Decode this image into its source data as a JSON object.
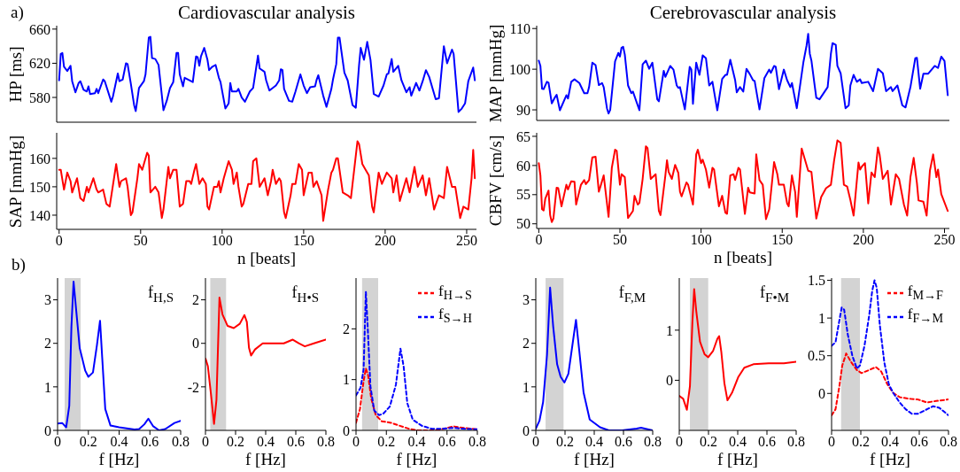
{
  "chart_data": [
    {
      "type": "line",
      "title": "Cardiovascular analysis",
      "ylabel": "HP [ms]",
      "annotations": [
        "a)"
      ],
      "xlim": [
        -1.5,
        256
      ],
      "ylim": [
        551,
        664
      ],
      "xticks": [
        0,
        50,
        100,
        150,
        200,
        250
      ],
      "yticks": [
        580,
        620,
        660
      ],
      "tick_labels": "y",
      "series": [
        {
          "color": "#0000ff",
          "x": [
            0,
            1,
            2,
            3,
            5,
            7,
            8,
            10,
            12,
            13,
            15,
            17,
            18,
            19,
            22,
            23,
            24,
            27,
            28,
            32,
            33,
            36,
            37,
            39,
            41,
            42,
            44,
            46,
            47,
            49,
            52,
            53,
            55,
            56,
            57,
            59,
            61,
            64,
            66,
            68,
            70,
            72,
            73,
            74,
            76,
            77,
            82,
            84,
            85,
            86,
            87,
            89,
            91,
            92,
            94,
            96,
            98,
            99,
            102,
            104,
            105,
            106,
            109,
            110,
            112,
            114,
            117,
            119,
            122,
            123,
            126,
            127,
            129,
            133,
            135,
            136,
            137,
            138,
            141,
            143,
            145,
            148,
            150,
            152,
            154,
            157,
            158,
            159,
            162,
            164,
            167,
            168,
            170,
            171,
            172,
            175,
            177,
            180,
            182,
            184,
            185,
            187,
            189,
            191,
            193,
            196,
            199,
            201,
            202,
            204,
            205,
            208,
            210,
            213,
            215,
            216,
            219,
            221,
            223,
            225,
            227,
            231,
            233,
            236,
            238,
            241,
            242,
            245,
            247,
            249,
            251,
            254,
            255
          ],
          "values": [
            600,
            631,
            632,
            616,
            611,
            617,
            599,
            586,
            597,
            599,
            589,
            587,
            593,
            584,
            585,
            590,
            585,
            601,
            599,
            575,
            581,
            608,
            599,
            601,
            620,
            619,
            596,
            571,
            564,
            591,
            599,
            607,
            650,
            651,
            626,
            625,
            618,
            565,
            576,
            591,
            598,
            632,
            632,
            607,
            593,
            603,
            598,
            628,
            627,
            617,
            628,
            638,
            624,
            612,
            616,
            618,
            603,
            598,
            567,
            573,
            597,
            587,
            587,
            590,
            580,
            575,
            587,
            591,
            629,
            614,
            610,
            600,
            588,
            594,
            600,
            613,
            612,
            590,
            576,
            575,
            587,
            607,
            594,
            585,
            592,
            593,
            601,
            606,
            582,
            569,
            590,
            601,
            619,
            650,
            650,
            609,
            600,
            571,
            568,
            618,
            638,
            624,
            645,
            624,
            584,
            581,
            594,
            607,
            608,
            625,
            610,
            617,
            600,
            586,
            592,
            582,
            597,
            588,
            599,
            612,
            604,
            578,
            579,
            640,
            620,
            636,
            631,
            563,
            567,
            573,
            599,
            615,
            600
          ]
        }
      ]
    },
    {
      "type": "line",
      "title": "Cerebrovascular analysis",
      "ylabel": "MAP [mmHg]",
      "xlim": [
        -1.3,
        253
      ],
      "ylim": [
        87.4,
        110.7
      ],
      "xticks": [
        0,
        50,
        100,
        150,
        200,
        250
      ],
      "yticks": [
        90,
        100,
        110
      ],
      "tick_labels": "y",
      "series": [
        {
          "color": "#0000ff",
          "x": [
            0,
            1,
            2,
            3,
            5,
            6,
            8,
            10,
            11,
            13,
            17,
            18,
            20,
            22,
            25,
            28,
            30,
            31,
            33,
            35,
            37,
            39,
            40,
            42,
            43,
            44,
            47,
            49,
            50,
            51,
            52,
            53,
            55,
            57,
            58,
            62,
            64,
            66,
            68,
            70,
            73,
            74,
            77,
            78,
            81,
            83,
            85,
            86,
            87,
            90,
            93,
            94,
            95,
            97,
            99,
            101,
            103,
            105,
            107,
            110,
            113,
            115,
            116,
            118,
            121,
            122,
            124,
            126,
            128,
            130,
            132,
            133,
            136,
            139,
            142,
            143,
            145,
            146,
            148,
            151,
            153,
            155,
            156,
            159,
            163,
            165,
            166,
            167,
            168,
            170,
            171,
            173,
            178,
            180,
            181,
            183,
            184,
            186,
            189,
            191,
            192,
            194,
            196,
            198,
            199,
            203,
            206,
            209,
            212,
            214,
            217,
            218,
            221,
            224,
            226,
            229,
            232,
            233,
            235,
            237,
            240,
            244,
            246,
            248,
            250,
            252
          ],
          "values": [
            102.1,
            100.8,
            95.2,
            95.1,
            96.9,
            96.7,
            91.6,
            93.1,
            93.7,
            89.9,
            93.6,
            92.8,
            96.9,
            97.5,
            96.6,
            94.1,
            94.1,
            95.6,
            101.6,
            101.0,
            96.1,
            96.6,
            95.6,
            90.4,
            89.1,
            90.0,
            101.9,
            104.0,
            103.1,
            105.3,
            105.5,
            103.6,
            96.0,
            94.1,
            94.5,
            89.9,
            101.2,
            102.1,
            100.1,
            101.6,
            92.6,
            92.1,
            99.6,
            98.1,
            100.8,
            99.9,
            96.0,
            95.4,
            95.6,
            90.1,
            100.6,
            99.9,
            91.5,
            101.6,
            98.6,
            103.4,
            102.7,
            96.0,
            96.9,
            89.9,
            97.6,
            98.6,
            98.6,
            102.3,
            97.3,
            94.3,
            95.6,
            94.5,
            100.1,
            98.8,
            97.3,
            97.1,
            90.1,
            97.8,
            99.9,
            99.1,
            100.8,
            100.6,
            95.1,
            99.9,
            97.3,
            95.6,
            96.6,
            90.4,
            101.6,
            105.8,
            108.7,
            103.8,
            102.1,
            96.0,
            93.0,
            92.6,
            95.6,
            103.8,
            106.4,
            106.0,
            100.8,
            99.0,
            90.4,
            91.1,
            96.0,
            98.6,
            96.9,
            97.5,
            96.6,
            96.9,
            94.6,
            100.1,
            99.0,
            94.6,
            95.6,
            94.6,
            96.0,
            91.1,
            90.6,
            95.6,
            102.7,
            102.8,
            95.2,
            98.9,
            98.9,
            100.8,
            100.3,
            103.1,
            102.0,
            93.6
          ]
        }
      ]
    },
    {
      "type": "line",
      "xlabel": "n [beats]",
      "ylabel": "SAP [mmHg]",
      "xlim": [
        -1.5,
        256
      ],
      "ylim": [
        135,
        169
      ],
      "xticks": [
        0,
        50,
        100,
        150,
        200,
        250
      ],
      "yticks": [
        140,
        150,
        160
      ],
      "series": [
        {
          "color": "#ff0000",
          "x": [
            0,
            1,
            3,
            4,
            5,
            7,
            8,
            11,
            13,
            15,
            17,
            18,
            21,
            23,
            24,
            27,
            29,
            31,
            35,
            37,
            38,
            41,
            42,
            44,
            45,
            48,
            49,
            51,
            52,
            54,
            55,
            56,
            59,
            61,
            63,
            64,
            67,
            68,
            70,
            72,
            74,
            76,
            78,
            80,
            81,
            83,
            84,
            86,
            88,
            90,
            91,
            92,
            95,
            97,
            98,
            99,
            101,
            104,
            106,
            107,
            109,
            110,
            112,
            113,
            116,
            118,
            119,
            121,
            123,
            126,
            128,
            130,
            131,
            133,
            135,
            136,
            138,
            139,
            142,
            143,
            145,
            147,
            149,
            150,
            153,
            155,
            156,
            158,
            161,
            162,
            165,
            167,
            168,
            170,
            171,
            174,
            177,
            179,
            180,
            183,
            184,
            186,
            188,
            190,
            192,
            193,
            196,
            198,
            201,
            204,
            205,
            207,
            209,
            213,
            215,
            218,
            220,
            223,
            225,
            227,
            230,
            233,
            236,
            238,
            241,
            243,
            246,
            248,
            251,
            253,
            254,
            255
          ],
          "values": [
            156,
            156,
            149,
            152,
            155,
            152,
            148,
            153,
            146,
            145,
            150,
            148,
            153,
            149,
            148,
            149,
            144,
            143,
            158,
            150,
            152,
            153,
            150,
            140,
            141,
            153,
            158,
            156,
            158,
            162,
            161,
            148,
            150,
            148,
            139,
            142,
            157,
            153,
            156,
            156,
            143,
            144,
            152,
            152,
            151,
            156,
            158,
            151,
            153,
            151,
            143,
            142,
            150,
            150,
            152,
            148,
            153,
            159,
            156,
            151,
            155,
            150,
            143,
            144,
            151,
            151,
            159,
            160,
            150,
            153,
            147,
            152,
            156,
            151,
            153,
            152,
            141,
            139,
            147,
            151,
            151,
            158,
            156,
            147,
            155,
            155,
            150,
            152,
            147,
            138,
            149,
            155,
            156,
            160,
            160,
            148,
            147,
            146,
            151,
            166,
            165,
            158,
            156,
            154,
            143,
            141,
            155,
            151,
            155,
            153,
            148,
            154,
            145,
            153,
            148,
            157,
            150,
            154,
            147,
            153,
            142,
            147,
            146,
            157,
            150,
            150,
            139,
            143,
            142,
            153,
            163,
            153
          ]
        }
      ]
    },
    {
      "type": "line",
      "xlabel": "n [beats]",
      "ylabel": "CBFV [cm/s]",
      "xlim": [
        -1.3,
        253
      ],
      "ylim": [
        49.2,
        65.6
      ],
      "xticks": [
        0,
        50,
        100,
        150,
        200,
        250
      ],
      "yticks": [
        50,
        55,
        60,
        65
      ],
      "series": [
        {
          "color": "#ff0000",
          "x": [
            0,
            1,
            2,
            3,
            4,
            6,
            7,
            8,
            9,
            11,
            12,
            14,
            17,
            18,
            20,
            22,
            23,
            26,
            28,
            29,
            31,
            33,
            35,
            37,
            38,
            40,
            43,
            45,
            47,
            48,
            50,
            51,
            53,
            55,
            58,
            59,
            61,
            62,
            64,
            66,
            67,
            69,
            72,
            74,
            75,
            78,
            79,
            80,
            82,
            84,
            86,
            87,
            88,
            91,
            92,
            95,
            97,
            98,
            100,
            101,
            103,
            105,
            107,
            108,
            111,
            113,
            115,
            116,
            118,
            120,
            121,
            123,
            124,
            127,
            129,
            130,
            133,
            134,
            136,
            138,
            140,
            142,
            145,
            147,
            148,
            151,
            153,
            154,
            156,
            158,
            159,
            162,
            166,
            168,
            171,
            174,
            177,
            180,
            182,
            184,
            186,
            188,
            190,
            192,
            194,
            197,
            198,
            199,
            201,
            203,
            205,
            207,
            209,
            210,
            212,
            215,
            217,
            220,
            222,
            225,
            227,
            229,
            231,
            233,
            234,
            237,
            239,
            241,
            243,
            245,
            246,
            248,
            252
          ],
          "values": [
            60.4,
            58.3,
            52.5,
            52.3,
            54.3,
            55.7,
            51.5,
            50.3,
            50.9,
            56.2,
            56.1,
            53.0,
            56.7,
            55.9,
            57.3,
            57.2,
            53.3,
            56.7,
            57.5,
            56.8,
            57.5,
            61.4,
            61.5,
            55.5,
            56.4,
            58.3,
            51.2,
            59.6,
            62.7,
            62.5,
            56.7,
            58.5,
            58.0,
            51.0,
            52.2,
            54.8,
            53.3,
            53.6,
            57.7,
            63.3,
            63.0,
            57.7,
            58.5,
            52.2,
            51.5,
            58.3,
            60.9,
            58.9,
            57.7,
            60.1,
            58.7,
            55.5,
            54.7,
            57.1,
            56.7,
            53.3,
            61.9,
            62.7,
            60.4,
            61.0,
            59.3,
            56.2,
            59.6,
            59.3,
            53.0,
            54.8,
            51.9,
            51.7,
            58.3,
            58.5,
            57.5,
            59.6,
            59.3,
            51.7,
            56.2,
            55.4,
            55.2,
            61.9,
            57.5,
            56.7,
            50.8,
            52.5,
            60.6,
            58.5,
            56.7,
            56.7,
            53.5,
            53.0,
            58.3,
            55.4,
            51.2,
            62.9,
            59.1,
            58.9,
            50.9,
            54.6,
            56.1,
            56.7,
            60.9,
            64.3,
            63.9,
            56.7,
            56.4,
            54.1,
            51.4,
            60.5,
            59.3,
            59.8,
            60.4,
            53.5,
            58.8,
            58.0,
            63.1,
            61.9,
            57.7,
            59.1,
            53.3,
            58.5,
            57.7,
            53.3,
            51.4,
            58.0,
            61.3,
            57.0,
            54.0,
            53.8,
            51.4,
            59.1,
            61.9,
            58.0,
            59.3,
            55.1,
            52.2
          ]
        }
      ]
    },
    {
      "type": "line",
      "xlabel": "f [Hz]",
      "annotations": [
        "b)"
      ],
      "xlim": [
        0,
        0.8
      ],
      "ylim": [
        0,
        3.5
      ],
      "xticks": [
        0,
        0.2,
        0.4,
        0.6,
        0.8
      ],
      "yticks": [
        0,
        1,
        2,
        3
      ],
      "bands": [
        {
          "axis": "x",
          "from": 0.046,
          "to": 0.15,
          "color": "#d3d3d3"
        }
      ],
      "series": [
        {
          "name": "f$_{H,S}$",
          "color": "#0000ff",
          "x": [
            0,
            0.03,
            0.056,
            0.076,
            0.09,
            0.104,
            0.12,
            0.144,
            0.18,
            0.2,
            0.23,
            0.256,
            0.276,
            0.29,
            0.31,
            0.344,
            0.4,
            0.46,
            0.5,
            0.53,
            0.564,
            0.59,
            0.62,
            0.66,
            0.7,
            0.76,
            0.8
          ],
          "values": [
            0.16,
            0.17,
            0.07,
            0.56,
            2.38,
            3.42,
            2.8,
            1.89,
            1.37,
            1.23,
            1.33,
            1.96,
            2.52,
            1.68,
            0.49,
            0.11,
            0.07,
            0.04,
            0.02,
            0.03,
            0.14,
            0.27,
            0.1,
            0,
            0.03,
            0.17,
            0.22
          ]
        }
      ]
    },
    {
      "type": "line",
      "xlabel": "f [Hz]",
      "xlim": [
        0,
        0.8
      ],
      "ylim": [
        -4,
        3
      ],
      "xticks": [
        0,
        0.2,
        0.4,
        0.6,
        0.8
      ],
      "yticks": [
        -2,
        0,
        2
      ],
      "bands": [
        {
          "axis": "x",
          "from": 0.032,
          "to": 0.137,
          "color": "#d3d3d3"
        }
      ],
      "series": [
        {
          "name": "f$_{H•S}$",
          "color": "#ff0000",
          "x": [
            0,
            0.016,
            0.036,
            0.057,
            0.073,
            0.093,
            0.113,
            0.147,
            0.188,
            0.228,
            0.259,
            0.275,
            0.289,
            0.303,
            0.329,
            0.38,
            0.46,
            0.52,
            0.58,
            0.62,
            0.66,
            0.72,
            0.8
          ],
          "values": [
            -0.7,
            -1.05,
            -2.3,
            -3.7,
            -2.6,
            2.1,
            1.33,
            0.8,
            0.7,
            0.9,
            1.3,
            0.98,
            -0.2,
            -0.56,
            -0.28,
            0,
            0,
            0,
            0.17,
            0,
            -0.14,
            0,
            0.17
          ]
        }
      ]
    },
    {
      "type": "line",
      "xlabel": "f [Hz]",
      "xlim": [
        0,
        0.8
      ],
      "ylim": [
        0,
        3
      ],
      "xticks": [
        0,
        0.2,
        0.4,
        0.6,
        0.8
      ],
      "yticks": [
        0,
        1,
        2
      ],
      "legend": "top right",
      "bands": [
        {
          "axis": "x",
          "from": 0.04,
          "to": 0.146,
          "color": "#d3d3d3"
        }
      ],
      "series": [
        {
          "name": "f$_{H→S}$",
          "color": "#ff0000",
          "line_style": "dashed",
          "x": [
            0,
            0.026,
            0.05,
            0.065,
            0.08,
            0.1,
            0.13,
            0.17,
            0.23,
            0.29,
            0.35,
            0.41,
            0.52,
            0.58,
            0.64,
            0.68,
            0.74,
            0.8
          ],
          "values": [
            0.15,
            0.42,
            0.97,
            1.22,
            1.08,
            0.63,
            0.3,
            0.18,
            0.15,
            0.09,
            0.03,
            0,
            0,
            0.03,
            0.08,
            0.06,
            0.04,
            0.02
          ]
        },
        {
          "name": "f$_{S→H}$",
          "color": "#0000ff",
          "line_style": "dashed",
          "x": [
            0,
            0.03,
            0.05,
            0.065,
            0.077,
            0.095,
            0.12,
            0.152,
            0.18,
            0.223,
            0.263,
            0.293,
            0.314,
            0.338,
            0.374,
            0.435,
            0.5,
            0.55,
            0.64,
            0.72,
            0.8
          ],
          "values": [
            0.69,
            0.84,
            1.2,
            2.73,
            2.04,
            0.87,
            0.39,
            0.3,
            0.33,
            0.47,
            0.9,
            1.61,
            1.26,
            0.54,
            0.21,
            0.09,
            0.03,
            0.03,
            0.05,
            0.03,
            0.02
          ]
        }
      ]
    },
    {
      "type": "line",
      "xlabel": "f [Hz]",
      "xlim": [
        0,
        0.8
      ],
      "ylim": [
        0,
        3.5
      ],
      "xticks": [
        0,
        0.2,
        0.4,
        0.6,
        0.8
      ],
      "yticks": [
        0,
        1,
        2,
        3
      ],
      "bands": [
        {
          "axis": "x",
          "from": 0.067,
          "to": 0.19,
          "color": "#d3d3d3"
        }
      ],
      "series": [
        {
          "name": "f$_{F,M}$",
          "color": "#0000ff",
          "x": [
            0,
            0.025,
            0.05,
            0.077,
            0.098,
            0.119,
            0.146,
            0.17,
            0.196,
            0.223,
            0.254,
            0.275,
            0.296,
            0.327,
            0.369,
            0.44,
            0.5,
            0.59,
            0.69,
            0.72,
            0.8
          ],
          "values": [
            0.04,
            0.22,
            0.65,
            1.74,
            3.28,
            2.39,
            1.52,
            1.23,
            1.1,
            1.3,
            2.04,
            2.54,
            1.88,
            0.87,
            0.25,
            0.07,
            0,
            0,
            0.04,
            0.06,
            0
          ]
        }
      ]
    },
    {
      "type": "line",
      "xlabel": "f [Hz]",
      "xlim": [
        0,
        0.8
      ],
      "ylim": [
        -1,
        2.04
      ],
      "xticks": [
        0,
        0.2,
        0.4,
        0.6,
        0.8
      ],
      "yticks": [
        0,
        1
      ],
      "bands": [
        {
          "axis": "x",
          "from": 0.073,
          "to": 0.198,
          "color": "#d3d3d3"
        }
      ],
      "series": [
        {
          "name": "f$_{F•M}$",
          "color": "#ff0000",
          "x": [
            0,
            0.027,
            0.052,
            0.073,
            0.09,
            0.102,
            0.117,
            0.142,
            0.173,
            0.198,
            0.232,
            0.261,
            0.273,
            0.288,
            0.309,
            0.33,
            0.361,
            0.403,
            0.445,
            0.507,
            0.612,
            0.716,
            0.8
          ],
          "values": [
            -0.31,
            -0.37,
            -0.59,
            -0.12,
            1.17,
            1.82,
            1.36,
            0.77,
            0.52,
            0.46,
            0.59,
            0.83,
            0.88,
            0.56,
            -0.06,
            -0.4,
            -0.25,
            0.06,
            0.25,
            0.32,
            0.34,
            0.34,
            0.37
          ]
        }
      ]
    },
    {
      "type": "line",
      "xlabel": "f [Hz]",
      "xlim": [
        0,
        0.8
      ],
      "ylim": [
        -0.49,
        1.53
      ],
      "xticks": [
        0,
        0.2,
        0.4,
        0.6,
        0.8
      ],
      "yticks": [
        0,
        0.5,
        1,
        1.5
      ],
      "legend": "top right",
      "bands": [
        {
          "axis": "x",
          "from": 0.065,
          "to": 0.194,
          "color": "#d3d3d3"
        }
      ],
      "series": [
        {
          "name": "f$_{M→F}$",
          "color": "#ff0000",
          "line_style": "dashed",
          "x": [
            0,
            0.027,
            0.052,
            0.073,
            0.1,
            0.132,
            0.173,
            0.205,
            0.257,
            0.303,
            0.34,
            0.382,
            0.42,
            0.466,
            0.528,
            0.59,
            0.653,
            0.716,
            0.8
          ],
          "values": [
            -0.29,
            -0.21,
            0.08,
            0.37,
            0.53,
            0.42,
            0.31,
            0.27,
            0.31,
            0.35,
            0.29,
            0.12,
            0.01,
            -0.05,
            -0.07,
            -0.08,
            -0.12,
            -0.1,
            -0.08
          ]
        },
        {
          "name": "f$_{F→M}$",
          "color": "#0000ff",
          "line_style": "dashed",
          "x": [
            0,
            0.027,
            0.048,
            0.069,
            0.086,
            0.111,
            0.142,
            0.173,
            0.194,
            0.225,
            0.257,
            0.278,
            0.294,
            0.309,
            0.33,
            0.361,
            0.392,
            0.424,
            0.466,
            0.507,
            0.549,
            0.59,
            0.653,
            0.695,
            0.737,
            0.8
          ],
          "values": [
            0.63,
            0.68,
            0.91,
            1.14,
            1.11,
            0.78,
            0.5,
            0.33,
            0.37,
            0.63,
            1.03,
            1.36,
            1.5,
            1.4,
            0.91,
            0.41,
            0.12,
            0,
            -0.12,
            -0.21,
            -0.27,
            -0.27,
            -0.21,
            -0.17,
            -0.19,
            -0.29
          ]
        }
      ]
    }
  ]
}
